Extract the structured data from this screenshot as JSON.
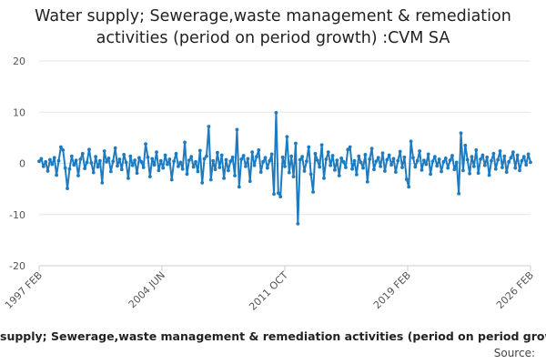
{
  "chart_data": {
    "type": "line",
    "title_lines": [
      "Water supply; Sewerage,waste management & remediation",
      "activities (period on period growth) :CVM SA"
    ],
    "xlabel": "",
    "ylabel": "",
    "ylim": [
      -20,
      20
    ],
    "y_ticks": [
      "20",
      "10",
      "0",
      "-10",
      "-20"
    ],
    "x_ticks": [
      "1997 FEB",
      "2004 JUN",
      "2011 OCT",
      "2019 FEB",
      "2026 FEB"
    ],
    "grid": true,
    "series": [
      {
        "name": "Water supply; Sewerage,waste management & remediation activities (period on period growth) :CVM SA",
        "color": "#1f7bbf",
        "x_start": "1997 FEB",
        "x_end": "2026 FEB",
        "values": [
          0.4,
          0.9,
          -0.6,
          0.3,
          -1.5,
          0.7,
          -0.2,
          1.1,
          -2.3,
          0.5,
          3.2,
          2.6,
          -0.9,
          -4.9,
          -1.1,
          1.4,
          -0.3,
          0.6,
          -2.4,
          0.8,
          1.9,
          -1.0,
          0.2,
          2.7,
          0.1,
          -1.8,
          1.3,
          -0.7,
          0.5,
          -3.8,
          2.4,
          0.3,
          1.0,
          -1.6,
          0.4,
          3.0,
          -0.5,
          0.8,
          -1.2,
          1.7,
          0.2,
          -2.9,
          1.4,
          -0.4,
          0.6,
          -1.9,
          1.1,
          0.3,
          -0.8,
          3.8,
          1.2,
          -2.6,
          0.9,
          -0.3,
          2.2,
          -1.4,
          0.5,
          -0.9,
          1.6,
          -0.2,
          0.8,
          -3.2,
          0.4,
          1.9,
          -0.6,
          0.2,
          -1.1,
          4.1,
          -2.1,
          0.6,
          1.3,
          -0.7,
          0.3,
          -1.6,
          2.5,
          -3.8,
          0.9,
          1.4,
          7.2,
          -3.2,
          0.5,
          -1.2,
          2.1,
          -0.8,
          1.6,
          -2.9,
          0.7,
          -1.4,
          0.4,
          1.2,
          -2.4,
          6.6,
          -4.6,
          0.8,
          1.5,
          -0.6,
          0.9,
          -3.5,
          2.2,
          -0.4,
          1.3,
          2.6,
          -1.7,
          0.3,
          1.1,
          -0.9,
          0.5,
          1.8,
          -6.0,
          9.9,
          -5.8,
          -6.5,
          1.2,
          -0.6,
          5.2,
          -1.8,
          1.4,
          -2.6,
          3.9,
          -11.8,
          0.7,
          1.3,
          -1.5,
          0.4,
          3.2,
          -2.1,
          -5.6,
          1.9,
          0.6,
          -0.7,
          3.6,
          -2.9,
          0.8,
          2.2,
          -0.4,
          1.5,
          -1.3,
          0.6,
          -2.4,
          1.0,
          0.3,
          -0.8,
          2.7,
          3.2,
          -1.1,
          0.5,
          -2.2,
          1.4,
          0.2,
          -0.9,
          1.7,
          -3.6,
          0.8,
          2.9,
          -1.2,
          0.4,
          1.1,
          -0.6,
          2.0,
          -1.5,
          0.7,
          1.6,
          -0.3,
          0.9,
          -1.7,
          0.5,
          2.3,
          -0.8,
          1.2,
          -3.1,
          -4.6,
          4.3,
          1.1,
          -0.7,
          0.5,
          2.4,
          -1.3,
          0.6,
          -0.2,
          1.8,
          -2.1,
          0.4,
          1.3,
          -0.5,
          0.8,
          -1.6,
          0.3,
          1.0,
          -0.9,
          0.6,
          1.5,
          -1.2,
          0.2,
          -5.9,
          5.9,
          -1.4,
          3.5,
          0.7,
          -2.0,
          1.3,
          -0.6,
          2.6,
          -1.9,
          0.8,
          1.6,
          -0.4,
          1.2,
          -2.3,
          0.5,
          1.9,
          -1.1,
          0.7,
          2.4,
          -0.8,
          1.4,
          -1.7,
          0.3,
          1.1,
          2.2,
          -0.9,
          1.6,
          -1.4,
          0.5,
          1.3,
          -0.3,
          1.8,
          0.2
        ]
      }
    ],
    "legend_text": "supply; Sewerage,waste management & remediation activities (period on period grow"
  },
  "source_label": "Source:"
}
